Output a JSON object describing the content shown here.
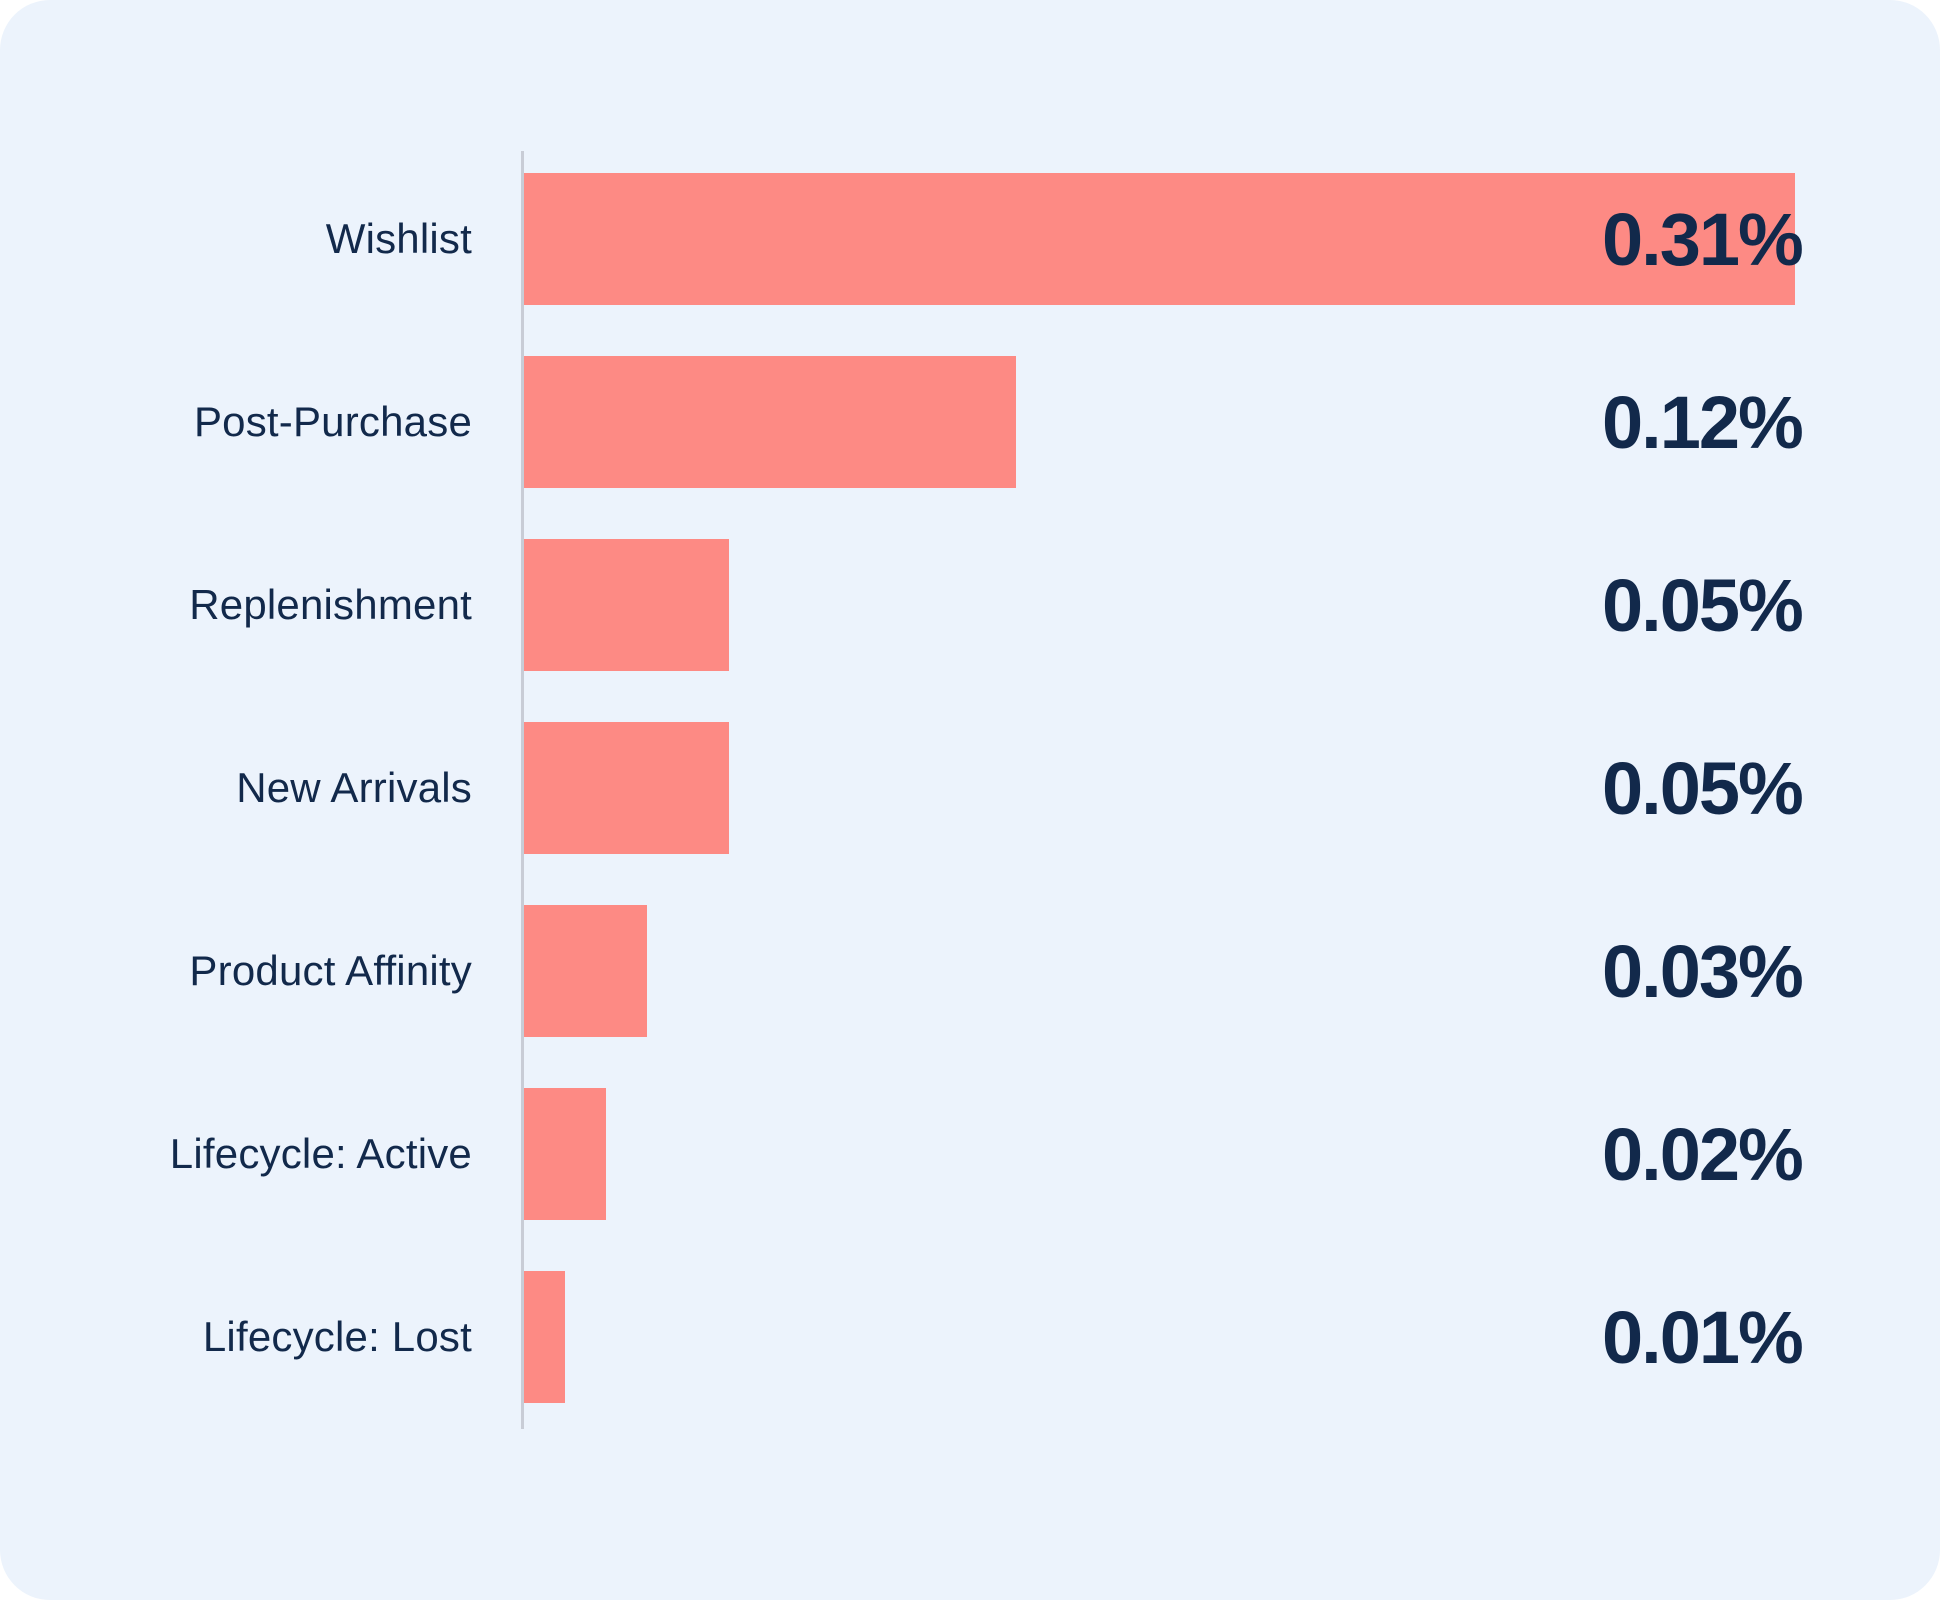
{
  "chart_data": {
    "type": "bar",
    "orientation": "horizontal",
    "title": "",
    "xlabel": "",
    "ylabel": "",
    "categories": [
      "Wishlist",
      "Post-Purchase",
      "Replenishment",
      "New Arrivals",
      "Product Affinity",
      "Lifecycle: Active",
      "Lifecycle: Lost"
    ],
    "values": [
      0.31,
      0.12,
      0.05,
      0.05,
      0.03,
      0.02,
      0.01
    ],
    "value_labels": [
      "0.31%",
      "0.12%",
      "0.05%",
      "0.05%",
      "0.03%",
      "0.02%",
      "0.01%"
    ],
    "xlim": [
      0,
      0.31
    ],
    "grid": false,
    "legend": false,
    "value_label_position": "fixed-right-column",
    "colors": {
      "bar": "#FD8A84",
      "background": "#ECF3FC",
      "text": "#12294B",
      "axis": "#C8CCD6"
    }
  }
}
